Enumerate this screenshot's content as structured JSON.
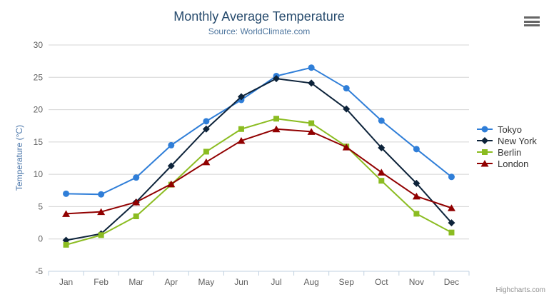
{
  "credits": {
    "text": "Highcharts.com"
  },
  "menu": {
    "icon": "hamburger-menu-icon"
  },
  "chart_data": {
    "type": "line",
    "title": "Monthly Average Temperature",
    "subtitle": "Source: WorldClimate.com",
    "categories": [
      "Jan",
      "Feb",
      "Mar",
      "Apr",
      "May",
      "Jun",
      "Jul",
      "Aug",
      "Sep",
      "Oct",
      "Nov",
      "Dec"
    ],
    "series": [
      {
        "name": "Tokyo",
        "color": "#2f7ed8",
        "marker": "circle",
        "values": [
          7.0,
          6.9,
          9.5,
          14.5,
          18.2,
          21.5,
          25.2,
          26.5,
          23.3,
          18.3,
          13.9,
          9.6
        ]
      },
      {
        "name": "New York",
        "color": "#0d233a",
        "marker": "diamond",
        "values": [
          -0.2,
          0.8,
          5.7,
          11.3,
          17.0,
          22.0,
          24.8,
          24.1,
          20.1,
          14.1,
          8.6,
          2.5
        ]
      },
      {
        "name": "Berlin",
        "color": "#8bbc21",
        "marker": "square",
        "values": [
          -0.9,
          0.6,
          3.5,
          8.4,
          13.5,
          17.0,
          18.6,
          17.9,
          14.3,
          9.0,
          3.9,
          1.0
        ]
      },
      {
        "name": "London",
        "color": "#910000",
        "marker": "triangle",
        "values": [
          3.9,
          4.2,
          5.7,
          8.5,
          11.9,
          15.2,
          17.0,
          16.6,
          14.2,
          10.3,
          6.6,
          4.8
        ]
      }
    ],
    "xlabel": "",
    "ylabel": "Temperature (°C)",
    "ylim": [
      -5,
      30
    ],
    "ytick_step": 5,
    "grid": true,
    "legend_position": "right"
  }
}
